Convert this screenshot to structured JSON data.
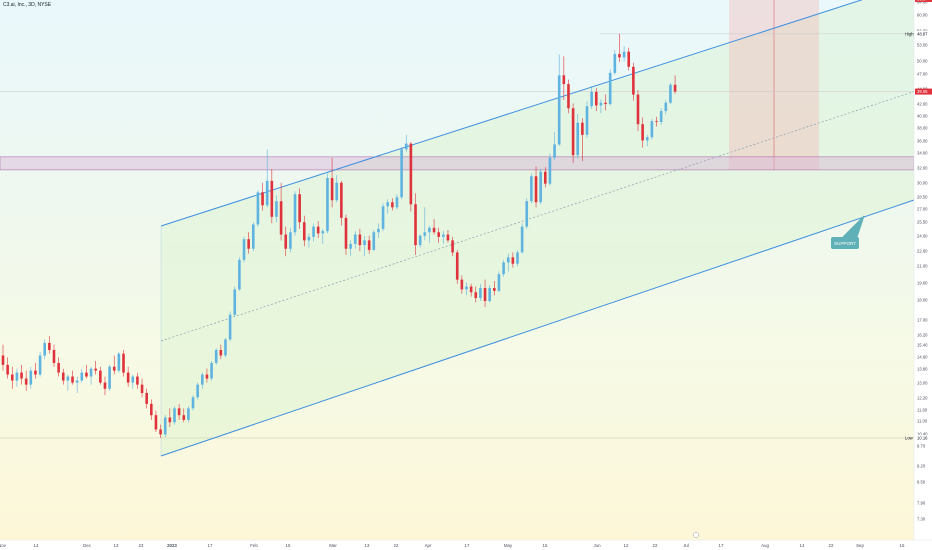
{
  "header": {
    "symbol_label": "C3.ai, Inc., 3D, NYSE"
  },
  "colors": {
    "up": "#5fb3e0",
    "down": "#e0323c",
    "channel": "#3d8fe0",
    "resistance_line": "#e0323c",
    "support_zone": "#d8b4d8",
    "target_zone": "#f2b6b6",
    "support_label_bg": "#5fb0b7"
  },
  "chart_data": {
    "type": "candlestick",
    "y_scale": "log",
    "price_axis_ticks": [
      "64.00",
      "60.00",
      "56.00",
      "53.00",
      "50.00",
      "47.00",
      "44.00",
      "42.00",
      "40.00",
      "38.00",
      "36.00",
      "34.00",
      "32.00",
      "30.00",
      "28.50",
      "27.00",
      "25.50",
      "24.00",
      "22.60",
      "21.00",
      "19.60",
      "18.00",
      "17.00",
      "16.20",
      "15.40",
      "14.60",
      "13.80",
      "13.00",
      "12.20",
      "11.60",
      "11.00",
      "10.40",
      "9.70",
      "9.20",
      "8.50",
      "7.90",
      "7.30"
    ],
    "time_axis_ticks": [
      "Nov",
      "14",
      "Dec",
      "13",
      "23",
      "2023",
      "17",
      "Feb",
      "15",
      "Mar",
      "13",
      "22",
      "Apr",
      "17",
      "May",
      "15",
      "Jun",
      "12",
      "22",
      "Jul",
      "17",
      "Aug",
      "14",
      "22",
      "Sep",
      "16"
    ],
    "price_labels": [
      {
        "text": "55.97",
        "kind": "resistance"
      },
      {
        "text": "48.87",
        "kind": "high"
      },
      {
        "text": "39.05",
        "kind": "last"
      },
      {
        "text": "10.16",
        "kind": "low"
      }
    ],
    "high_label": "High",
    "low_label": "Low",
    "annotations": {
      "measure": "26.02 (69.73%) 2602",
      "support_label": "SUPPORT"
    },
    "levels": {
      "resistance": 55.97,
      "support_zone": [
        28.8,
        30.3
      ],
      "low": 10.16,
      "high": 48.87,
      "last": 39.05
    },
    "candles": [
      {
        "o": 14.0,
        "h": 14.6,
        "l": 13.2,
        "c": 13.5
      },
      {
        "o": 13.5,
        "h": 13.9,
        "l": 12.8,
        "c": 13.0
      },
      {
        "o": 13.0,
        "h": 13.4,
        "l": 12.3,
        "c": 12.7
      },
      {
        "o": 12.7,
        "h": 13.3,
        "l": 12.4,
        "c": 13.1
      },
      {
        "o": 13.1,
        "h": 13.5,
        "l": 12.5,
        "c": 12.8
      },
      {
        "o": 12.8,
        "h": 13.2,
        "l": 12.2,
        "c": 12.5
      },
      {
        "o": 12.5,
        "h": 13.4,
        "l": 12.3,
        "c": 13.2
      },
      {
        "o": 13.2,
        "h": 13.6,
        "l": 12.8,
        "c": 13.0
      },
      {
        "o": 13.0,
        "h": 14.2,
        "l": 12.9,
        "c": 14.0
      },
      {
        "o": 14.0,
        "h": 14.9,
        "l": 13.8,
        "c": 14.7
      },
      {
        "o": 14.7,
        "h": 15.1,
        "l": 14.1,
        "c": 14.3
      },
      {
        "o": 14.3,
        "h": 14.6,
        "l": 13.4,
        "c": 13.6
      },
      {
        "o": 13.6,
        "h": 13.9,
        "l": 12.9,
        "c": 13.1
      },
      {
        "o": 13.1,
        "h": 13.3,
        "l": 12.5,
        "c": 12.7
      },
      {
        "o": 12.7,
        "h": 13.0,
        "l": 12.2,
        "c": 12.9
      },
      {
        "o": 12.9,
        "h": 13.2,
        "l": 12.5,
        "c": 12.6
      },
      {
        "o": 12.6,
        "h": 12.9,
        "l": 12.1,
        "c": 12.7
      },
      {
        "o": 12.7,
        "h": 13.3,
        "l": 12.6,
        "c": 13.1
      },
      {
        "o": 13.1,
        "h": 13.5,
        "l": 12.8,
        "c": 12.9
      },
      {
        "o": 12.9,
        "h": 13.4,
        "l": 12.5,
        "c": 13.3
      },
      {
        "o": 13.3,
        "h": 13.7,
        "l": 13.0,
        "c": 13.2
      },
      {
        "o": 13.2,
        "h": 13.4,
        "l": 12.5,
        "c": 12.6
      },
      {
        "o": 12.6,
        "h": 12.9,
        "l": 12.0,
        "c": 12.3
      },
      {
        "o": 12.3,
        "h": 13.5,
        "l": 12.2,
        "c": 13.4
      },
      {
        "o": 13.4,
        "h": 14.0,
        "l": 13.0,
        "c": 13.2
      },
      {
        "o": 13.2,
        "h": 14.2,
        "l": 13.1,
        "c": 14.1
      },
      {
        "o": 14.1,
        "h": 14.3,
        "l": 12.9,
        "c": 13.1
      },
      {
        "o": 13.1,
        "h": 13.4,
        "l": 12.4,
        "c": 12.6
      },
      {
        "o": 12.6,
        "h": 13.0,
        "l": 12.3,
        "c": 12.9
      },
      {
        "o": 12.9,
        "h": 13.1,
        "l": 12.3,
        "c": 12.5
      },
      {
        "o": 12.5,
        "h": 12.8,
        "l": 11.9,
        "c": 12.1
      },
      {
        "o": 12.1,
        "h": 12.3,
        "l": 11.4,
        "c": 11.6
      },
      {
        "o": 11.6,
        "h": 11.8,
        "l": 10.9,
        "c": 11.1
      },
      {
        "o": 11.1,
        "h": 11.3,
        "l": 10.4,
        "c": 10.5
      },
      {
        "o": 10.5,
        "h": 10.7,
        "l": 10.16,
        "c": 10.3
      },
      {
        "o": 10.3,
        "h": 11.1,
        "l": 10.2,
        "c": 11.0
      },
      {
        "o": 11.0,
        "h": 11.4,
        "l": 10.6,
        "c": 10.8
      },
      {
        "o": 10.8,
        "h": 11.5,
        "l": 10.7,
        "c": 11.4
      },
      {
        "o": 11.4,
        "h": 11.6,
        "l": 10.9,
        "c": 11.1
      },
      {
        "o": 11.1,
        "h": 11.4,
        "l": 10.8,
        "c": 10.9
      },
      {
        "o": 10.9,
        "h": 11.5,
        "l": 10.8,
        "c": 11.4
      },
      {
        "o": 11.4,
        "h": 12.0,
        "l": 11.3,
        "c": 11.9
      },
      {
        "o": 11.9,
        "h": 12.6,
        "l": 11.8,
        "c": 12.5
      },
      {
        "o": 12.5,
        "h": 13.1,
        "l": 12.3,
        "c": 13.0
      },
      {
        "o": 13.0,
        "h": 13.3,
        "l": 12.6,
        "c": 12.8
      },
      {
        "o": 12.8,
        "h": 13.7,
        "l": 12.7,
        "c": 13.6
      },
      {
        "o": 13.6,
        "h": 14.4,
        "l": 13.5,
        "c": 14.3
      },
      {
        "o": 14.3,
        "h": 14.6,
        "l": 13.8,
        "c": 14.0
      },
      {
        "o": 14.0,
        "h": 15.0,
        "l": 13.9,
        "c": 14.9
      },
      {
        "o": 14.9,
        "h": 16.6,
        "l": 14.8,
        "c": 16.4
      },
      {
        "o": 16.4,
        "h": 18.3,
        "l": 16.3,
        "c": 18.1
      },
      {
        "o": 18.1,
        "h": 20.5,
        "l": 18.0,
        "c": 20.3
      },
      {
        "o": 20.3,
        "h": 22.2,
        "l": 20.1,
        "c": 22.0
      },
      {
        "o": 22.0,
        "h": 22.6,
        "l": 20.8,
        "c": 21.2
      },
      {
        "o": 21.2,
        "h": 23.5,
        "l": 21.0,
        "c": 23.3
      },
      {
        "o": 23.3,
        "h": 26.6,
        "l": 23.1,
        "c": 26.4
      },
      {
        "o": 26.4,
        "h": 27.4,
        "l": 24.6,
        "c": 25.1
      },
      {
        "o": 25.1,
        "h": 31.2,
        "l": 24.9,
        "c": 27.6
      },
      {
        "o": 27.6,
        "h": 28.9,
        "l": 23.4,
        "c": 24.0
      },
      {
        "o": 24.0,
        "h": 26.1,
        "l": 23.5,
        "c": 25.5
      },
      {
        "o": 25.5,
        "h": 27.4,
        "l": 21.9,
        "c": 22.4
      },
      {
        "o": 22.4,
        "h": 23.1,
        "l": 20.6,
        "c": 21.2
      },
      {
        "o": 21.2,
        "h": 23.0,
        "l": 20.9,
        "c": 22.6
      },
      {
        "o": 22.6,
        "h": 26.5,
        "l": 22.3,
        "c": 26.2
      },
      {
        "o": 26.2,
        "h": 26.8,
        "l": 22.9,
        "c": 23.5
      },
      {
        "o": 23.5,
        "h": 24.1,
        "l": 21.4,
        "c": 21.9
      },
      {
        "o": 21.9,
        "h": 22.5,
        "l": 21.3,
        "c": 22.2
      },
      {
        "o": 22.2,
        "h": 23.4,
        "l": 21.8,
        "c": 23.1
      },
      {
        "o": 23.1,
        "h": 23.6,
        "l": 22.1,
        "c": 22.5
      },
      {
        "o": 22.5,
        "h": 22.9,
        "l": 21.6,
        "c": 22.7
      },
      {
        "o": 22.7,
        "h": 28.4,
        "l": 22.5,
        "c": 27.9
      },
      {
        "o": 27.9,
        "h": 30.2,
        "l": 24.9,
        "c": 25.6
      },
      {
        "o": 25.6,
        "h": 28.2,
        "l": 25.4,
        "c": 27.4
      },
      {
        "o": 27.4,
        "h": 27.6,
        "l": 23.2,
        "c": 23.9
      },
      {
        "o": 23.9,
        "h": 24.2,
        "l": 20.7,
        "c": 21.2
      },
      {
        "o": 21.2,
        "h": 21.9,
        "l": 20.6,
        "c": 21.6
      },
      {
        "o": 21.6,
        "h": 22.7,
        "l": 21.2,
        "c": 22.4
      },
      {
        "o": 22.4,
        "h": 22.9,
        "l": 21.0,
        "c": 21.5
      },
      {
        "o": 21.5,
        "h": 22.3,
        "l": 20.6,
        "c": 21.9
      },
      {
        "o": 21.9,
        "h": 22.3,
        "l": 20.8,
        "c": 21.1
      },
      {
        "o": 21.1,
        "h": 22.8,
        "l": 21.0,
        "c": 22.6
      },
      {
        "o": 22.6,
        "h": 23.4,
        "l": 22.1,
        "c": 22.9
      },
      {
        "o": 22.9,
        "h": 25.3,
        "l": 22.7,
        "c": 25.0
      },
      {
        "o": 25.0,
        "h": 25.7,
        "l": 24.3,
        "c": 25.4
      },
      {
        "o": 25.4,
        "h": 25.8,
        "l": 24.6,
        "c": 24.9
      },
      {
        "o": 24.9,
        "h": 26.2,
        "l": 24.7,
        "c": 25.9
      },
      {
        "o": 25.9,
        "h": 31.5,
        "l": 25.7,
        "c": 31.2
      },
      {
        "o": 31.2,
        "h": 33.0,
        "l": 30.9,
        "c": 31.9
      },
      {
        "o": 31.9,
        "h": 32.1,
        "l": 24.5,
        "c": 25.2
      },
      {
        "o": 25.2,
        "h": 26.3,
        "l": 20.7,
        "c": 21.5
      },
      {
        "o": 21.5,
        "h": 22.4,
        "l": 21.3,
        "c": 22.3
      },
      {
        "o": 22.3,
        "h": 24.9,
        "l": 21.9,
        "c": 22.6
      },
      {
        "o": 22.6,
        "h": 23.2,
        "l": 21.7,
        "c": 23.0
      },
      {
        "o": 23.0,
        "h": 23.8,
        "l": 22.4,
        "c": 22.6
      },
      {
        "o": 22.6,
        "h": 23.0,
        "l": 21.7,
        "c": 22.2
      },
      {
        "o": 22.2,
        "h": 22.7,
        "l": 21.6,
        "c": 22.4
      },
      {
        "o": 22.4,
        "h": 22.8,
        "l": 21.7,
        "c": 21.9
      },
      {
        "o": 21.9,
        "h": 22.2,
        "l": 20.6,
        "c": 20.9
      },
      {
        "o": 20.9,
        "h": 21.1,
        "l": 18.5,
        "c": 18.8
      },
      {
        "o": 18.8,
        "h": 19.1,
        "l": 17.8,
        "c": 18.1
      },
      {
        "o": 18.1,
        "h": 18.6,
        "l": 17.7,
        "c": 18.3
      },
      {
        "o": 18.3,
        "h": 18.5,
        "l": 17.6,
        "c": 17.9
      },
      {
        "o": 17.9,
        "h": 18.3,
        "l": 17.2,
        "c": 17.5
      },
      {
        "o": 17.5,
        "h": 18.5,
        "l": 17.3,
        "c": 18.2
      },
      {
        "o": 18.2,
        "h": 18.8,
        "l": 16.9,
        "c": 17.3
      },
      {
        "o": 17.3,
        "h": 18.4,
        "l": 17.2,
        "c": 18.2
      },
      {
        "o": 18.2,
        "h": 18.7,
        "l": 17.7,
        "c": 18.0
      },
      {
        "o": 18.0,
        "h": 19.4,
        "l": 17.9,
        "c": 19.2
      },
      {
        "o": 19.2,
        "h": 20.3,
        "l": 19.0,
        "c": 20.1
      },
      {
        "o": 20.1,
        "h": 20.8,
        "l": 19.4,
        "c": 20.5
      },
      {
        "o": 20.5,
        "h": 20.9,
        "l": 19.7,
        "c": 20.0
      },
      {
        "o": 20.0,
        "h": 21.1,
        "l": 19.8,
        "c": 20.9
      },
      {
        "o": 20.9,
        "h": 23.4,
        "l": 20.8,
        "c": 23.1
      },
      {
        "o": 23.1,
        "h": 25.8,
        "l": 22.9,
        "c": 25.5
      },
      {
        "o": 25.5,
        "h": 28.4,
        "l": 25.3,
        "c": 28.1
      },
      {
        "o": 28.1,
        "h": 29.2,
        "l": 24.9,
        "c": 25.4
      },
      {
        "o": 25.4,
        "h": 28.9,
        "l": 25.2,
        "c": 28.6
      },
      {
        "o": 28.6,
        "h": 29.1,
        "l": 26.9,
        "c": 27.3
      },
      {
        "o": 27.3,
        "h": 30.7,
        "l": 27.1,
        "c": 30.2
      },
      {
        "o": 30.2,
        "h": 33.4,
        "l": 29.9,
        "c": 31.8
      },
      {
        "o": 31.8,
        "h": 45.1,
        "l": 31.6,
        "c": 41.6
      },
      {
        "o": 41.6,
        "h": 44.8,
        "l": 37.8,
        "c": 40.2
      },
      {
        "o": 40.2,
        "h": 40.9,
        "l": 35.9,
        "c": 36.6
      },
      {
        "o": 36.6,
        "h": 37.3,
        "l": 29.6,
        "c": 30.5
      },
      {
        "o": 30.5,
        "h": 35.8,
        "l": 30.1,
        "c": 34.6
      },
      {
        "o": 34.6,
        "h": 35.2,
        "l": 29.8,
        "c": 33.0
      },
      {
        "o": 33.0,
        "h": 37.6,
        "l": 32.6,
        "c": 36.9
      },
      {
        "o": 36.9,
        "h": 39.9,
        "l": 36.5,
        "c": 39.0
      },
      {
        "o": 39.0,
        "h": 39.6,
        "l": 36.2,
        "c": 37.0
      },
      {
        "o": 37.0,
        "h": 37.9,
        "l": 35.9,
        "c": 37.4
      },
      {
        "o": 37.4,
        "h": 38.6,
        "l": 36.3,
        "c": 37.2
      },
      {
        "o": 37.2,
        "h": 42.6,
        "l": 37.0,
        "c": 42.0
      },
      {
        "o": 42.0,
        "h": 45.9,
        "l": 41.7,
        "c": 45.2
      },
      {
        "o": 45.2,
        "h": 48.87,
        "l": 43.8,
        "c": 44.6
      },
      {
        "o": 44.6,
        "h": 46.6,
        "l": 43.9,
        "c": 45.6
      },
      {
        "o": 45.6,
        "h": 46.3,
        "l": 42.4,
        "c": 43.0
      },
      {
        "o": 43.0,
        "h": 43.7,
        "l": 37.7,
        "c": 38.6
      },
      {
        "o": 38.6,
        "h": 39.3,
        "l": 33.5,
        "c": 34.4
      },
      {
        "o": 34.4,
        "h": 35.3,
        "l": 31.4,
        "c": 32.3
      },
      {
        "o": 32.3,
        "h": 33.0,
        "l": 31.6,
        "c": 32.7
      },
      {
        "o": 32.7,
        "h": 35.1,
        "l": 32.4,
        "c": 34.8
      },
      {
        "o": 34.8,
        "h": 35.4,
        "l": 34.1,
        "c": 34.7
      },
      {
        "o": 34.7,
        "h": 36.6,
        "l": 34.3,
        "c": 36.2
      },
      {
        "o": 36.2,
        "h": 37.8,
        "l": 35.7,
        "c": 37.4
      },
      {
        "o": 37.4,
        "h": 40.4,
        "l": 37.2,
        "c": 40.1
      },
      {
        "o": 40.1,
        "h": 41.6,
        "l": 38.7,
        "c": 39.05
      }
    ]
  }
}
